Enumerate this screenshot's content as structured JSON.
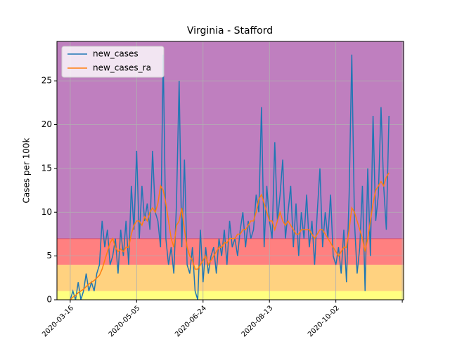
{
  "chart_data": {
    "type": "line",
    "title": "Virginia - Stafford",
    "y_label": "Cases per 100k",
    "x": [
      "2020-03-16",
      "2020-03-18",
      "2020-03-20",
      "2020-03-22",
      "2020-03-24",
      "2020-03-26",
      "2020-03-28",
      "2020-03-30",
      "2020-04-01",
      "2020-04-03",
      "2020-04-05",
      "2020-04-07",
      "2020-04-09",
      "2020-04-11",
      "2020-04-13",
      "2020-04-15",
      "2020-04-17",
      "2020-04-19",
      "2020-04-21",
      "2020-04-23",
      "2020-04-25",
      "2020-04-27",
      "2020-04-29",
      "2020-05-01",
      "2020-05-03",
      "2020-05-05",
      "2020-05-07",
      "2020-05-09",
      "2020-05-11",
      "2020-05-13",
      "2020-05-15",
      "2020-05-17",
      "2020-05-19",
      "2020-05-21",
      "2020-05-23",
      "2020-05-25",
      "2020-05-27",
      "2020-05-29",
      "2020-05-31",
      "2020-06-02",
      "2020-06-04",
      "2020-06-06",
      "2020-06-08",
      "2020-06-10",
      "2020-06-12",
      "2020-06-14",
      "2020-06-16",
      "2020-06-18",
      "2020-06-20",
      "2020-06-22",
      "2020-06-24",
      "2020-06-26",
      "2020-06-28",
      "2020-06-30",
      "2020-07-02",
      "2020-07-04",
      "2020-07-06",
      "2020-07-08",
      "2020-07-10",
      "2020-07-12",
      "2020-07-14",
      "2020-07-16",
      "2020-07-18",
      "2020-07-20",
      "2020-07-22",
      "2020-07-24",
      "2020-07-26",
      "2020-07-28",
      "2020-07-30",
      "2020-08-01",
      "2020-08-03",
      "2020-08-05",
      "2020-08-07",
      "2020-08-09",
      "2020-08-11",
      "2020-08-13",
      "2020-08-15",
      "2020-08-17",
      "2020-08-19",
      "2020-08-21",
      "2020-08-23",
      "2020-08-25",
      "2020-08-27",
      "2020-08-29",
      "2020-08-31",
      "2020-09-02",
      "2020-09-04",
      "2020-09-06",
      "2020-09-08",
      "2020-09-10",
      "2020-09-12",
      "2020-09-14",
      "2020-09-16",
      "2020-09-18",
      "2020-09-20",
      "2020-09-22",
      "2020-09-24",
      "2020-09-26",
      "2020-09-28",
      "2020-09-30",
      "2020-10-02",
      "2020-10-04",
      "2020-10-06",
      "2020-10-08",
      "2020-10-10",
      "2020-10-12",
      "2020-10-14",
      "2020-10-16",
      "2020-10-18",
      "2020-10-20",
      "2020-10-22",
      "2020-10-24",
      "2020-10-26",
      "2020-10-28",
      "2020-10-30",
      "2020-11-01",
      "2020-11-03",
      "2020-11-05",
      "2020-11-07",
      "2020-11-09",
      "2020-11-11"
    ],
    "series": [
      {
        "name": "new_cases",
        "color": "#1f77b4",
        "values": [
          0,
          1,
          0,
          2,
          0,
          1,
          3,
          1,
          2,
          1,
          3,
          4,
          9,
          6,
          8,
          4,
          5,
          7,
          3,
          8,
          5,
          9,
          4,
          13,
          8,
          17,
          7,
          13,
          9,
          11,
          8,
          17,
          10,
          9,
          6,
          28,
          7,
          4,
          6,
          3,
          11,
          25,
          6,
          16,
          4,
          3,
          6,
          1,
          0,
          8,
          2,
          6,
          3,
          5,
          6,
          3,
          7,
          5,
          8,
          4,
          9,
          6,
          7,
          5,
          8,
          10,
          6,
          9,
          7,
          8,
          12,
          10,
          22,
          6,
          13,
          9,
          7,
          18,
          9,
          12,
          16,
          7,
          10,
          13,
          6,
          11,
          5,
          10,
          7,
          12,
          6,
          9,
          4,
          10,
          15,
          6,
          10,
          7,
          12,
          5,
          4,
          6,
          3,
          8,
          2,
          12,
          28,
          9,
          3,
          6,
          13,
          1,
          15,
          5,
          21,
          9,
          12,
          22,
          13,
          8,
          21
        ]
      },
      {
        "name": "new_cases_ra",
        "color": "#ff7f0e",
        "values": [
          0,
          0.3,
          0.5,
          0.8,
          1,
          1.2,
          1.5,
          1.8,
          2,
          2.2,
          2.5,
          2.8,
          3.5,
          4.5,
          5.5,
          6.5,
          7,
          6,
          5.5,
          5.8,
          5.5,
          6,
          6,
          7.5,
          8.5,
          9,
          9,
          8.5,
          9.5,
          9,
          10,
          10.5,
          10,
          11,
          13,
          12.5,
          11,
          9,
          7,
          6,
          8.5,
          9,
          10.5,
          8,
          6,
          5,
          4.5,
          3.5,
          3.5,
          4,
          4.5,
          5,
          4,
          4.5,
          5,
          5.5,
          6,
          6,
          6.5,
          6.5,
          7,
          7,
          7,
          7.5,
          7.5,
          8,
          8,
          8.5,
          9,
          9,
          10,
          11.5,
          12,
          11,
          10,
          9,
          9,
          8,
          9,
          10,
          9,
          8.5,
          9,
          8.5,
          8,
          7.5,
          7.5,
          8,
          8,
          8,
          8,
          7.5,
          7,
          7.5,
          8,
          8,
          7.5,
          7,
          6.5,
          6,
          5.5,
          5,
          5.5,
          6,
          6,
          8,
          10.5,
          10,
          9,
          8,
          7,
          5.5,
          7,
          9,
          11,
          12.5,
          13,
          13.5,
          13,
          14,
          14.5
        ]
      }
    ],
    "bands": [
      {
        "from": 0,
        "to": 1,
        "color": "#ffff80"
      },
      {
        "from": 1,
        "to": 4,
        "color": "#ffd280"
      },
      {
        "from": 4,
        "to": 7,
        "color": "#ff8080",
        "edge": "#d62740"
      },
      {
        "from": 7,
        "to": 29.5,
        "color": "#bf7fbf"
      }
    ],
    "xlim": [
      "2020-03-06",
      "2020-11-22"
    ],
    "xticks": [
      "2020-03-16",
      "2020-05-05",
      "2020-06-24",
      "2020-08-13",
      "2020-10-02",
      {
        "value": "2020-11-21",
        "label": null
      }
    ],
    "ylim": [
      0,
      29.5
    ],
    "yticks": [
      0,
      5,
      10,
      15,
      20,
      25
    ],
    "grid": true,
    "legend": "upper left"
  }
}
